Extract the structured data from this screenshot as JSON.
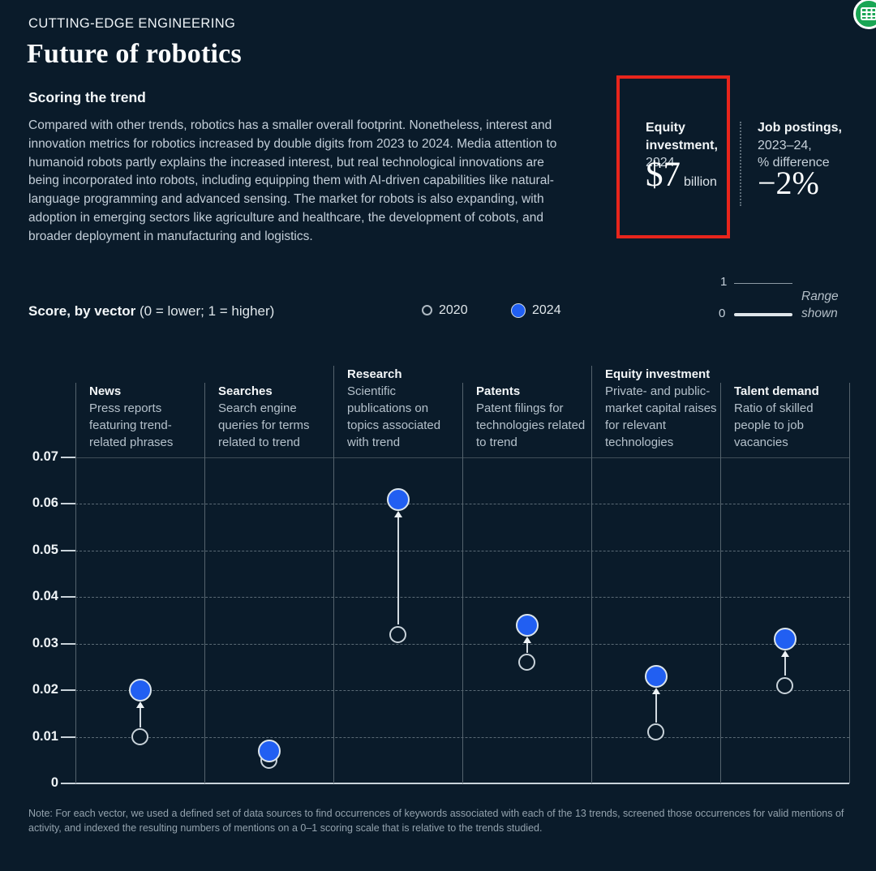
{
  "page": {
    "eyebrow": "CUTTING-EDGE ENGINEERING",
    "title": "Future of robotics",
    "section_title": "Scoring the trend",
    "body": "Compared with other trends, robotics has a smaller overall footprint. Nonetheless, interest and innovation metrics for robotics increased by double digits from 2023 to 2024. Media attention to humanoid robots partly explains the increased interest, but real technological innovations are being incorporated into robots, including equipping them with AI-driven capabilities like natural-language programming and advanced sensing. The market for robots is also expanding, with adoption in emerging sectors like agriculture and healthcare, the development of cobots, and broader deployment in manufacturing and logistics.",
    "note": "Note: For each vector, we used a defined set of data sources to find occurrences of keywords associated with each of the 13 trends, screened those occurrences for valid mentions of activity, and indexed the resulting numbers of mentions on a 0–1 scoring scale that is relative to the trends studied."
  },
  "stats": {
    "equity": {
      "label_bold": "Equity investment,",
      "label_rest": "2024",
      "value": "$7",
      "unit": "billion",
      "highlighted": true
    },
    "jobs": {
      "label_bold": "Job postings,",
      "label_line2": "2023–24,",
      "label_line3": "% difference",
      "value": "−2%"
    }
  },
  "legend": {
    "score_bold": "Score, by vector",
    "score_rest": " (0 = lower; 1 = higher)",
    "items": [
      {
        "label": "2020",
        "marker": "open-circle"
      },
      {
        "label": "2024",
        "marker": "filled-circle",
        "color": "#215ff2"
      }
    ],
    "range": {
      "top_value": "1",
      "bottom_value": "0",
      "caption": "Range shown"
    }
  },
  "chart_data": {
    "type": "scatter",
    "title": "Score, by vector (0 = lower; 1 = higher)",
    "ylim": [
      0,
      0.07
    ],
    "yticks": [
      0,
      0.01,
      0.02,
      0.03,
      0.04,
      0.05,
      0.06,
      0.07
    ],
    "grid": "horizontal-dashed",
    "legend_position": "top",
    "categories": [
      "News",
      "Searches",
      "Research",
      "Patents",
      "Equity investment",
      "Talent demand"
    ],
    "category_descriptions": [
      "Press reports featuring trend-related phrases",
      "Search engine queries for terms related to trend",
      "Scientific publications on topics associated with trend",
      "Patent filings for technologies related to trend",
      "Private- and public-market capital raises for relevant technologies",
      "Ratio of skilled people to job vacancies"
    ],
    "series": [
      {
        "name": "2020",
        "marker": "open-circle",
        "values": [
          0.01,
          0.005,
          0.032,
          0.026,
          0.011,
          0.021
        ]
      },
      {
        "name": "2024",
        "marker": "filled-circle",
        "color": "#215ff2",
        "values": [
          0.02,
          0.007,
          0.061,
          0.034,
          0.023,
          0.031
        ]
      }
    ]
  },
  "icons": {
    "corner_icon": "table-grid-icon"
  },
  "colors": {
    "background": "#0a1b2a",
    "accent_blue": "#215ff2",
    "highlight_red": "#e8251c",
    "icon_green": "#1aa654"
  }
}
